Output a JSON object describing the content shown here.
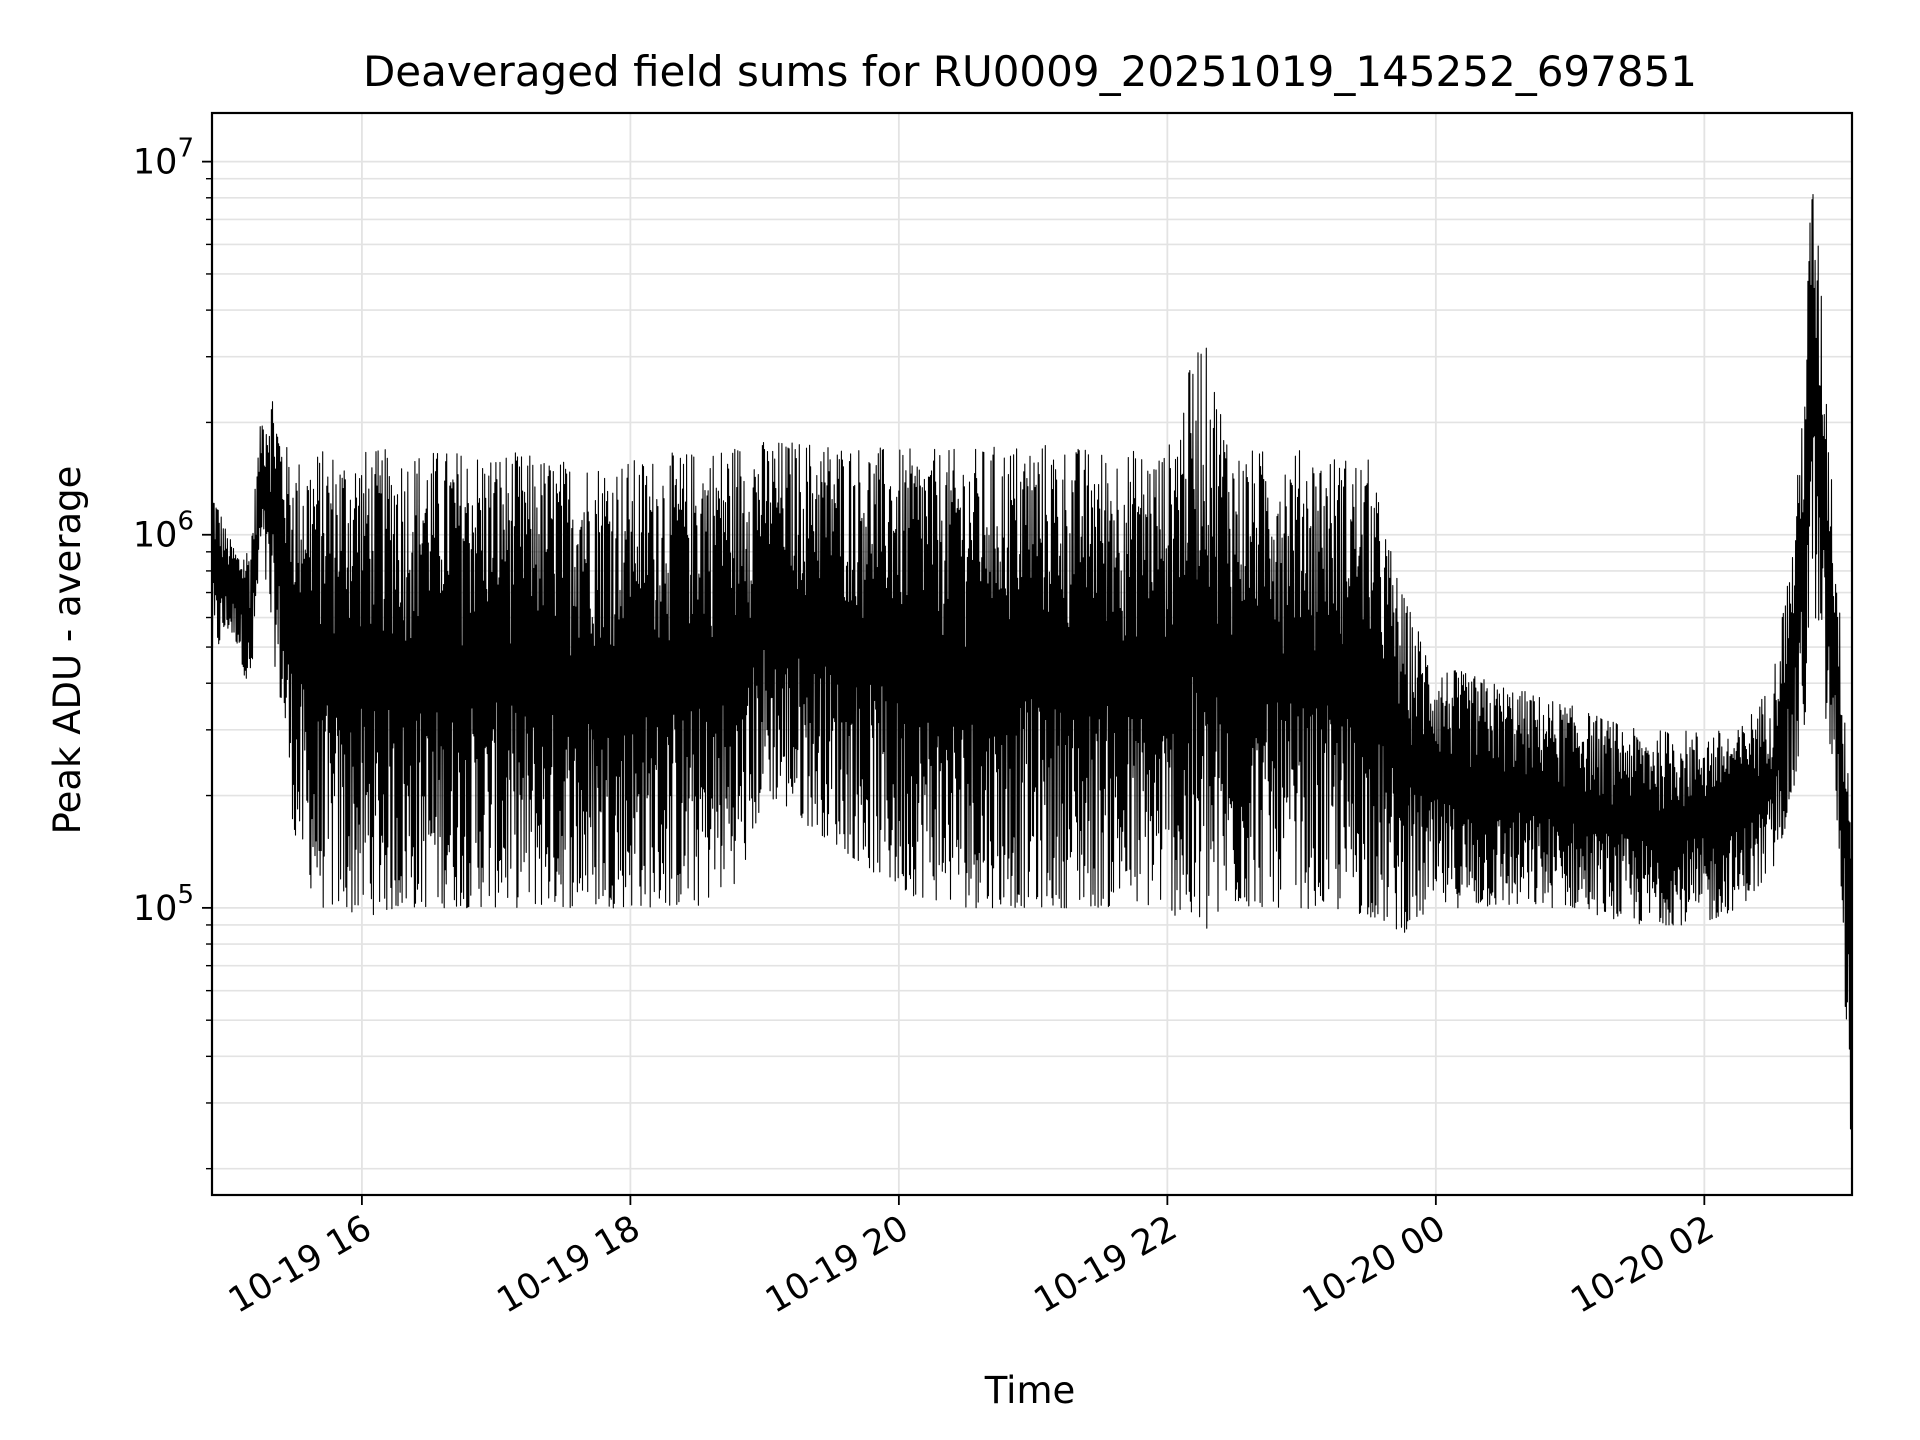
{
  "chart_data": {
    "type": "line",
    "title": "Deaveraged field sums for RU0009_20251019_145252_697851",
    "xlabel": "Time",
    "ylabel": "Peak ADU - average",
    "y_scale": "log",
    "grid": true,
    "legend": "none",
    "line_color": "#000000",
    "grid_color": "#e3e3e3",
    "xlim": [
      "2025-10-19 14:53",
      "2025-10-20 03:06"
    ],
    "ylim": [
      17000,
      13500000
    ],
    "x_ticks": [
      {
        "value": "2025-10-19 16:00",
        "label": "10-19 16"
      },
      {
        "value": "2025-10-19 18:00",
        "label": "10-19 18"
      },
      {
        "value": "2025-10-19 20:00",
        "label": "10-19 20"
      },
      {
        "value": "2025-10-19 22:00",
        "label": "10-19 22"
      },
      {
        "value": "2025-10-20 00:00",
        "label": "10-20 00"
      },
      {
        "value": "2025-10-20 02:00",
        "label": "10-20 02"
      }
    ],
    "y_ticks": [
      {
        "value": 100000,
        "base": "10",
        "exp": "5"
      },
      {
        "value": 1000000,
        "base": "10",
        "exp": "6"
      },
      {
        "value": 10000000,
        "base": "10",
        "exp": "7"
      }
    ],
    "series": [
      {
        "x": [
          "2025-10-19 14:53",
          "2025-10-19 15:00",
          "2025-10-19 15:05",
          "2025-10-19 15:10",
          "2025-10-19 15:15",
          "2025-10-19 15:20",
          "2025-10-19 15:25",
          "2025-10-19 15:30",
          "2025-10-19 15:40",
          "2025-10-19 16:00",
          "2025-10-19 16:30",
          "2025-10-19 17:00",
          "2025-10-19 17:30",
          "2025-10-19 18:00",
          "2025-10-19 18:30",
          "2025-10-19 18:50",
          "2025-10-19 19:00",
          "2025-10-19 19:30",
          "2025-10-19 20:00",
          "2025-10-19 20:30",
          "2025-10-19 21:00",
          "2025-10-19 21:30",
          "2025-10-19 22:00",
          "2025-10-19 22:15",
          "2025-10-19 22:30",
          "2025-10-19 23:00",
          "2025-10-19 23:30",
          "2025-10-19 23:45",
          "2025-10-20 00:00",
          "2025-10-20 00:30",
          "2025-10-20 01:00",
          "2025-10-20 01:30",
          "2025-10-20 02:00",
          "2025-10-20 02:15",
          "2025-10-20 02:30",
          "2025-10-20 02:40",
          "2025-10-20 02:45",
          "2025-10-20 02:48",
          "2025-10-20 02:52",
          "2025-10-20 03:00",
          "2025-10-20 03:06"
        ],
        "lower": [
          450000,
          550000,
          500000,
          350000,
          900000,
          500000,
          300000,
          150000,
          100000,
          95000,
          100000,
          100000,
          100000,
          100000,
          100000,
          120000,
          200000,
          150000,
          110000,
          100000,
          100000,
          100000,
          100000,
          80000,
          100000,
          100000,
          95000,
          85000,
          100000,
          100000,
          100000,
          90000,
          90000,
          100000,
          120000,
          200000,
          300000,
          800000,
          400000,
          150000,
          20000
        ],
        "upper": [
          1400000,
          1000000,
          900000,
          950000,
          2100000,
          2500000,
          1800000,
          1600000,
          1700000,
          1700000,
          1700000,
          1700000,
          1600000,
          1600000,
          1700000,
          1800000,
          1800000,
          1800000,
          1700000,
          1700000,
          1800000,
          1700000,
          1700000,
          3600000,
          1700000,
          1700000,
          1600000,
          700000,
          450000,
          400000,
          350000,
          300000,
          300000,
          300000,
          400000,
          1000000,
          3000000,
          10000000,
          5000000,
          700000,
          200000
        ]
      }
    ]
  }
}
